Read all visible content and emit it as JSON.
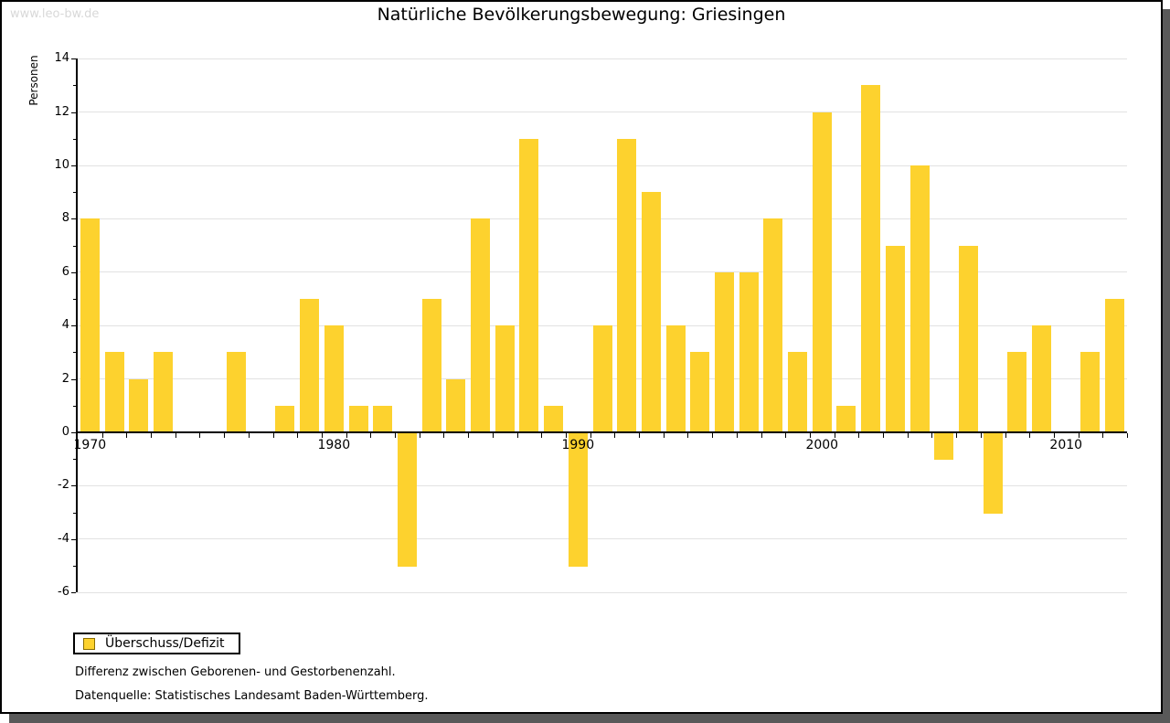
{
  "watermark": "www.leo-bw.de",
  "title": "Natürliche Bevölkerungsbewegung: Griesingen",
  "y_axis_label": "Personen",
  "legend": {
    "label": "Überschuss/Defizit"
  },
  "notes": {
    "line1": "Differenz zwischen Geborenen- und Gestorbenenzahl.",
    "line2": "Datenquelle: Statistisches Landesamt Baden-Württemberg."
  },
  "colors": {
    "bar": "#fdd22e",
    "swatch_border": "#8a6d00",
    "grid": "#e2e2e2",
    "axis": "#000000",
    "shadow": "#595959",
    "watermark": "#d8d8d8"
  },
  "chart_data": {
    "type": "bar",
    "title": "Natürliche Bevölkerungsbewegung: Griesingen",
    "xlabel": "",
    "ylabel": "Personen",
    "series_name": "Überschuss/Defizit",
    "ylim": [
      -6,
      14
    ],
    "ytick_interval": 2,
    "grid": true,
    "legend_position": "bottom-left",
    "x_labeled_years": [
      1970,
      1980,
      1990,
      2000,
      2010
    ],
    "categories": [
      1970,
      1971,
      1972,
      1973,
      1974,
      1975,
      1976,
      1977,
      1978,
      1979,
      1980,
      1981,
      1982,
      1983,
      1984,
      1985,
      1986,
      1987,
      1988,
      1989,
      1990,
      1991,
      1992,
      1993,
      1994,
      1995,
      1996,
      1997,
      1998,
      1999,
      2000,
      2001,
      2002,
      2003,
      2004,
      2005,
      2006,
      2007,
      2008,
      2009,
      2010,
      2011,
      2012
    ],
    "values": [
      8,
      3,
      2,
      3,
      0,
      0,
      3,
      0,
      1,
      5,
      4,
      1,
      1,
      -5,
      5,
      2,
      8,
      4,
      11,
      1,
      -5,
      4,
      11,
      9,
      4,
      3,
      6,
      6,
      8,
      3,
      12,
      1,
      13,
      7,
      10,
      -1,
      7,
      -3,
      3,
      4,
      0,
      3,
      5
    ]
  }
}
